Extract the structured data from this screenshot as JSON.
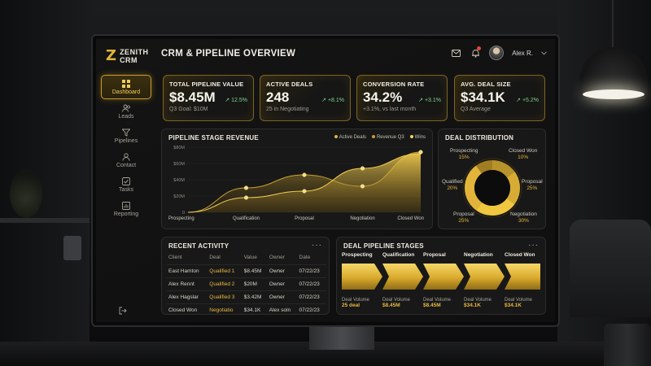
{
  "app": {
    "logo_letter": "Z",
    "logo_line1": "ZENITH",
    "logo_line2": "CRM"
  },
  "header": {
    "title": "CRM & PIPELINE OVERVIEW",
    "user_name": "Alex R.",
    "notification_count": ""
  },
  "sidebar": {
    "items": [
      {
        "label": "Dashboard",
        "icon": "dashboard-icon",
        "active": true
      },
      {
        "label": "Leads",
        "icon": "users-icon"
      },
      {
        "label": "Pipelines",
        "icon": "funnel-icon"
      },
      {
        "label": "Contact",
        "icon": "contact-icon"
      },
      {
        "label": "Tasks",
        "icon": "tasks-icon"
      },
      {
        "label": "Reporting",
        "icon": "chart-icon"
      }
    ],
    "logout_icon": "logout-icon"
  },
  "kpis": [
    {
      "label": "TOTAL PIPELINE VALUE",
      "value": "$8.45M",
      "change": "↗ 12.5%",
      "sub": "Q3 Goal: $10M"
    },
    {
      "label": "ACTIVE DEALS",
      "value": "248",
      "change": "↗ +8.1%",
      "sub": "25 in Negotiating"
    },
    {
      "label": "CONVERSION RATE",
      "value": "34.2%",
      "change": "↗ +3.1%",
      "sub": "+3.1%, vs last month"
    },
    {
      "label": "AVG. DEAL SIZE",
      "value": "$34.1K",
      "change": "↗ +5.2%",
      "sub": "Q3 Average"
    }
  ],
  "pipeline_chart": {
    "title": "PIPELINE STAGE REVENUE",
    "legend": [
      "Active Deals",
      "Revenue Q3",
      "Wins"
    ]
  },
  "chart_data": {
    "type": "area",
    "categories": [
      "Prospecting",
      "Qualification",
      "Proposal",
      "Negotiation",
      "Closed Won"
    ],
    "y_ticks": [
      "$80M",
      "$60M",
      "$40M",
      "$20M",
      "0"
    ],
    "ylim": [
      0,
      80
    ],
    "series": [
      {
        "name": "Revenue Q3",
        "values": [
          0,
          30,
          46,
          32,
          74
        ]
      },
      {
        "name": "Active Deals",
        "values": [
          0,
          18,
          26,
          54,
          72
        ]
      }
    ],
    "markers": [
      {
        "x": "Qualification",
        "y": 30
      },
      {
        "x": "Qualification",
        "y": 18
      },
      {
        "x": "Proposal",
        "y": 46
      },
      {
        "x": "Proposal",
        "y": 26
      },
      {
        "x": "Negotiation",
        "y": 54
      },
      {
        "x": "Negotiation",
        "y": 32
      },
      {
        "x": "Closed Won",
        "y": 74
      }
    ],
    "grid": true
  },
  "distribution": {
    "title": "DEAL DISTRIBUTION",
    "segments": [
      {
        "label": "Prospecting",
        "pct": "15%",
        "value": 15,
        "color": "#b8922a"
      },
      {
        "label": "Qualified",
        "pct": "20%",
        "value": 20,
        "color": "#d8ac34"
      },
      {
        "label": "Proposal",
        "pct": "25%",
        "value": 25,
        "color": "#f0c73f"
      },
      {
        "label": "Negotiation",
        "pct": "30%",
        "value": 30,
        "color": "#e2b53a"
      },
      {
        "label": "Closed Won",
        "pct": "10%",
        "value": 10,
        "color": "#a07d22"
      }
    ],
    "bottom_left": {
      "label": "Proposal",
      "pct": "25%"
    }
  },
  "activity": {
    "title": "RECENT ACTIVITY",
    "columns": [
      "Client",
      "Deal",
      "Value",
      "Owner",
      "Date"
    ],
    "rows": [
      [
        "East Hamton",
        "Qualified 1",
        "$8.45M",
        "Owner",
        "07/22/23"
      ],
      [
        "Alex Rennt",
        "Qualified 2",
        "$20M",
        "Owner",
        "07/22/23"
      ],
      [
        "Alex Hagslar",
        "Qualified 3",
        "$3.42M",
        "Owner",
        "07/22/23"
      ],
      [
        "Closed Won",
        "Negotiatio",
        "$34.1K",
        "Alex soln",
        "07/22/23"
      ]
    ]
  },
  "stages": {
    "title": "DEAL PIPELINE STAGES",
    "items": [
      {
        "name": "Prospecting",
        "meta": "Deal Volume",
        "value": "25 deal"
      },
      {
        "name": "Qualification",
        "meta": "Deal Volume",
        "value": "$8.45M"
      },
      {
        "name": "Proposal",
        "meta": "Deal Volume",
        "value": "$8.45M"
      },
      {
        "name": "Negotiation",
        "meta": "Deal Volume",
        "value": "$34.1K"
      },
      {
        "name": "Closed Won",
        "meta": "Deal Volume",
        "value": "$34.1K"
      }
    ]
  },
  "colors": {
    "accent": "#e0b33a",
    "positive": "#7dd38a",
    "panel": "#181818"
  }
}
